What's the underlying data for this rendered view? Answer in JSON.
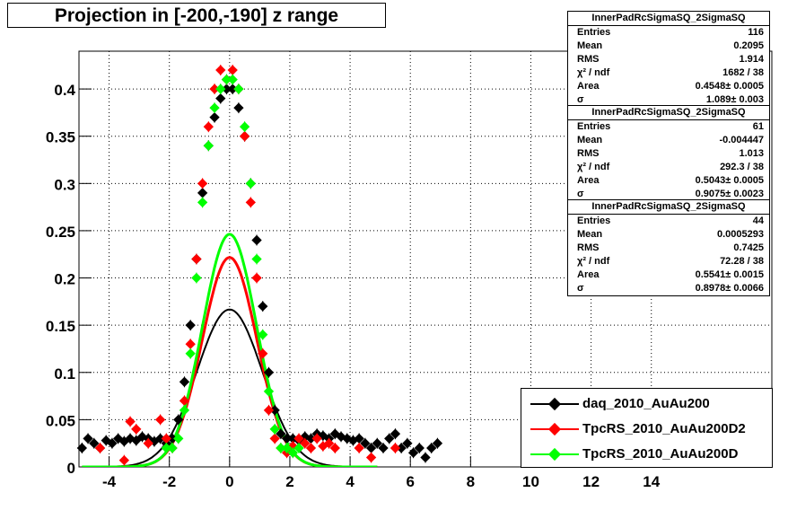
{
  "title": "Projection in [-200,-190] z range",
  "stats": [
    {
      "name": "InnerPadRcSigmaSQ_2SigmaSQ",
      "rows": [
        {
          "k": "Entries",
          "v": "116"
        },
        {
          "k": "Mean",
          "v": "0.2095"
        },
        {
          "k": "RMS",
          "v": "1.914"
        },
        {
          "k": "χ² / ndf",
          "v": "1682 / 38"
        },
        {
          "k": "Area",
          "v": "0.4548± 0.0005"
        },
        {
          "k": "σ",
          "v": "1.089± 0.003"
        }
      ]
    },
    {
      "name": "InnerPadRcSigmaSQ_2SigmaSQ",
      "rows": [
        {
          "k": "Entries",
          "v": "61"
        },
        {
          "k": "Mean",
          "v": "-0.004447"
        },
        {
          "k": "RMS",
          "v": "1.013"
        },
        {
          "k": "χ² / ndf",
          "v": "292.3 / 38"
        },
        {
          "k": "Area",
          "v": "0.5043± 0.0005"
        },
        {
          "k": "σ",
          "v": "0.9075± 0.0023"
        }
      ]
    },
    {
      "name": "InnerPadRcSigmaSQ_2SigmaSQ",
      "rows": [
        {
          "k": "Entries",
          "v": "44"
        },
        {
          "k": "Mean",
          "v": "0.0005293"
        },
        {
          "k": "RMS",
          "v": "0.7425"
        },
        {
          "k": "χ² / ndf",
          "v": "72.28 / 38"
        },
        {
          "k": "Area",
          "v": "0.5541± 0.0015"
        },
        {
          "k": "σ",
          "v": "0.8978± 0.0066"
        }
      ]
    }
  ],
  "chart_data": {
    "type": "scatter",
    "title": "Projection in [-200,-190] z range",
    "xlim": [
      -5,
      18
    ],
    "ylim": [
      0,
      0.44
    ],
    "grid": true,
    "x_ticks": [
      "-4",
      "-2",
      "0",
      "2",
      "4",
      "6",
      "8",
      "10",
      "12",
      "14"
    ],
    "x_tick_values": [
      -4,
      -2,
      0,
      2,
      4,
      6,
      8,
      10,
      12,
      14
    ],
    "y_ticks": [
      "0",
      "0.05",
      "0.1",
      "0.15",
      "0.2",
      "0.25",
      "0.3",
      "0.35",
      "0.4"
    ],
    "y_tick_values": [
      0,
      0.05,
      0.1,
      0.15,
      0.2,
      0.25,
      0.3,
      0.35,
      0.4
    ],
    "legend_position": "bottom-right",
    "series": [
      {
        "name": "daq_2010_AuAu200",
        "color": "#000000",
        "fit_area": 0.4548,
        "fit_sigma": 1.089,
        "x": [
          -4.9,
          -4.7,
          -4.5,
          -4.3,
          -4.1,
          -3.9,
          -3.7,
          -3.5,
          -3.3,
          -3.1,
          -2.9,
          -2.7,
          -2.5,
          -2.3,
          -2.1,
          -1.9,
          -1.7,
          -1.5,
          -1.3,
          -1.1,
          -0.9,
          -0.7,
          -0.5,
          -0.3,
          -0.1,
          0.1,
          0.3,
          0.5,
          0.7,
          0.9,
          1.1,
          1.3,
          1.5,
          1.7,
          1.9,
          2.1,
          2.3,
          2.5,
          2.7,
          2.9,
          3.1,
          3.3,
          3.5,
          3.7,
          3.9,
          4.1,
          4.3,
          4.5,
          4.7,
          4.9,
          5.1,
          5.3,
          5.5,
          5.7,
          5.9,
          6.1,
          6.3,
          6.5,
          6.7,
          6.9
        ],
        "y": [
          0.02,
          0.03,
          0.025,
          0.02,
          0.028,
          0.025,
          0.03,
          0.027,
          0.03,
          0.028,
          0.032,
          0.03,
          0.027,
          0.03,
          0.025,
          0.03,
          0.05,
          0.09,
          0.15,
          0.22,
          0.29,
          0.34,
          0.37,
          0.39,
          0.4,
          0.4,
          0.38,
          0.35,
          0.3,
          0.24,
          0.17,
          0.1,
          0.06,
          0.035,
          0.03,
          0.03,
          0.028,
          0.032,
          0.03,
          0.035,
          0.033,
          0.03,
          0.035,
          0.032,
          0.03,
          0.028,
          0.03,
          0.025,
          0.02,
          0.025,
          0.02,
          0.03,
          0.035,
          0.02,
          0.025,
          0.015,
          0.02,
          0.01,
          0.02,
          0.025
        ]
      },
      {
        "name": "TpcRS_2010_AuAu200D2",
        "color": "#ff0000",
        "fit_area": 0.5043,
        "fit_sigma": 0.9075,
        "x": [
          -4.3,
          -3.5,
          -3.3,
          -3.1,
          -2.7,
          -2.3,
          -2.1,
          -1.9,
          -1.5,
          -1.3,
          -1.1,
          -0.9,
          -0.7,
          -0.5,
          -0.3,
          -0.1,
          0.1,
          0.3,
          0.5,
          0.7,
          0.9,
          1.1,
          1.3,
          1.5,
          1.7,
          1.9,
          2.1,
          2.3,
          2.5,
          2.7,
          2.9,
          3.1,
          3.3,
          3.5,
          4.3,
          4.7,
          5.5
        ],
        "y": [
          0.02,
          0.007,
          0.048,
          0.04,
          0.025,
          0.05,
          0.03,
          0.02,
          0.07,
          0.13,
          0.22,
          0.3,
          0.36,
          0.4,
          0.42,
          0.41,
          0.42,
          0.4,
          0.35,
          0.28,
          0.2,
          0.12,
          0.06,
          0.03,
          0.02,
          0.015,
          0.022,
          0.03,
          0.025,
          0.02,
          0.03,
          0.022,
          0.025,
          0.02,
          0.02,
          0.01,
          0.02
        ]
      },
      {
        "name": "TpcRS_2010_AuAu200D",
        "color": "#00ff00",
        "fit_area": 0.5541,
        "fit_sigma": 0.8978,
        "x": [
          -2.1,
          -1.9,
          -1.7,
          -1.5,
          -1.3,
          -1.1,
          -0.9,
          -0.7,
          -0.5,
          -0.3,
          -0.1,
          0.1,
          0.3,
          0.5,
          0.7,
          0.9,
          1.1,
          1.3,
          1.5,
          1.7,
          1.9,
          2.1,
          2.3
        ],
        "y": [
          0.02,
          0.02,
          0.03,
          0.06,
          0.12,
          0.2,
          0.28,
          0.34,
          0.38,
          0.4,
          0.41,
          0.41,
          0.4,
          0.36,
          0.3,
          0.22,
          0.14,
          0.08,
          0.04,
          0.02,
          0.02,
          0.015,
          0.02
        ]
      }
    ]
  }
}
